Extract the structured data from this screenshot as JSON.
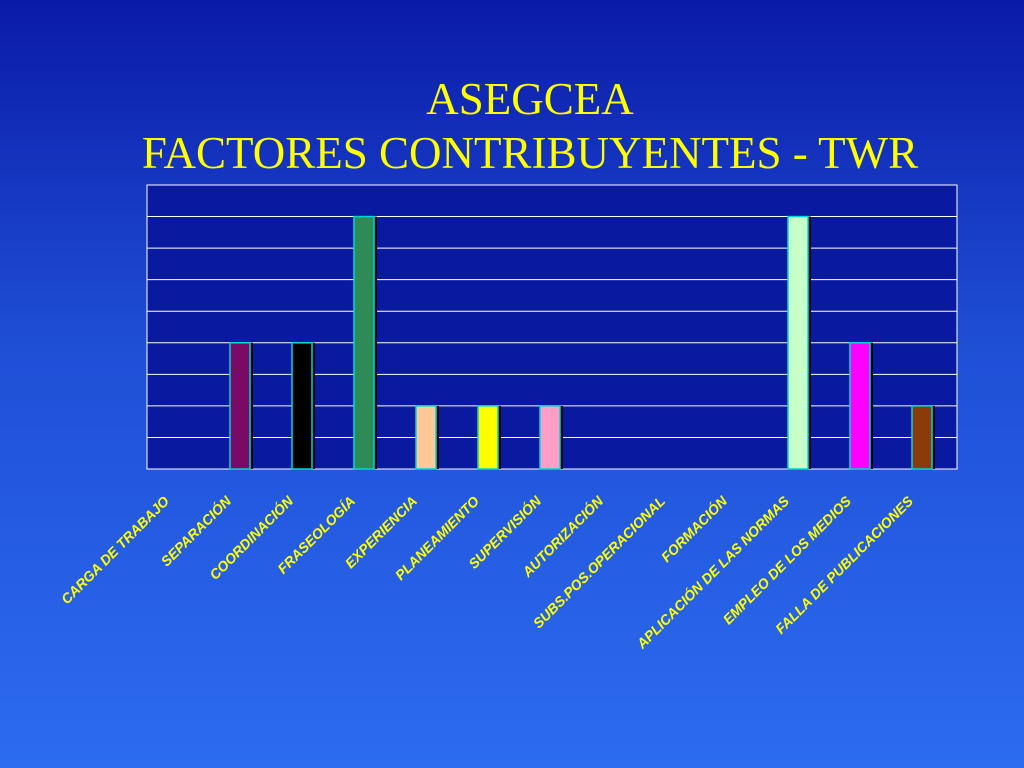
{
  "title": {
    "line1": "ASEGCEA",
    "line2": "FACTORES CONTRIBUYENTES - TWR"
  },
  "chart_data": {
    "type": "bar",
    "title": "ASEGCEA FACTORES CONTRIBUYENTES - TWR",
    "categories": [
      "CARGA DE TRABAJO",
      "SEPARACIÓN",
      "COORDINACIÓN",
      "FRASEOLOGÍA",
      "EXPERIENCIA",
      "PLANEAMIENTO",
      "SUPERVISIÓN",
      "AUTORIZACIÓN",
      "SUBS.POS.OPERACIONAL",
      "FORMACIÓN",
      "APLICACIÓN DE LAS NORMAS",
      "EMPLEO DE LOS MEDIOS",
      "FALLA DE PUBLICACIONES"
    ],
    "values": [
      0,
      4,
      4,
      8,
      2,
      2,
      2,
      0,
      0,
      0,
      8,
      4,
      2
    ],
    "colors": [
      "#000000",
      "#7a0a64",
      "#000000",
      "#2e8b57",
      "#ffc896",
      "#ffff00",
      "#ff9fc8",
      "#000000",
      "#000000",
      "#000000",
      "#c8ffc8",
      "#ff00ff",
      "#8b3a0a"
    ],
    "ylim": [
      0,
      9
    ],
    "grid": true,
    "legend": "none",
    "colors_meta": {
      "plot_background": "#0a1aa0",
      "grid": "#ffffff",
      "bar_outline": "#00d8d8",
      "label_color": "#ffff00"
    }
  }
}
